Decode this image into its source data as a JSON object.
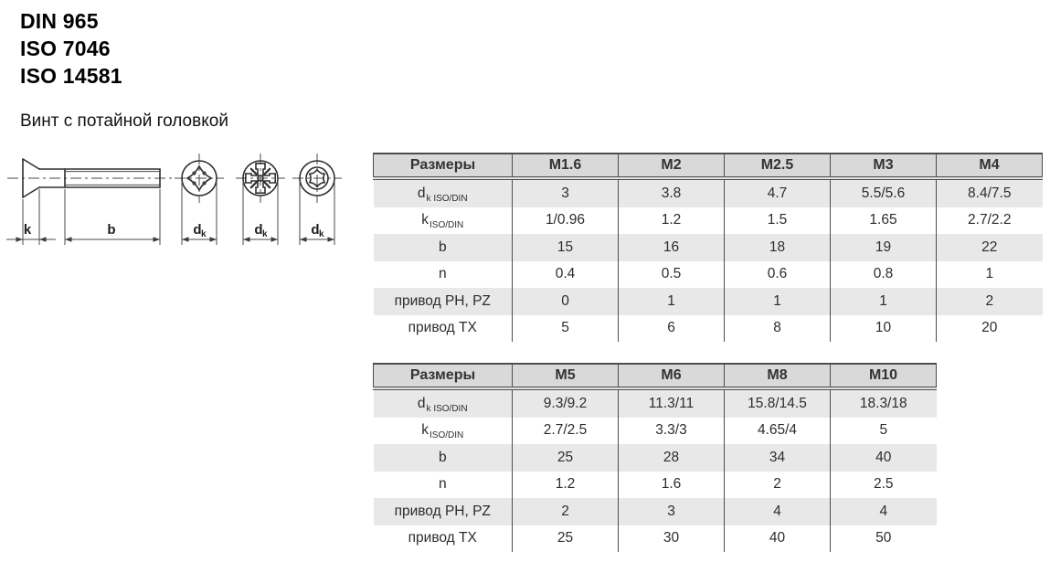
{
  "page": {
    "standards": [
      "DIN 965",
      "ISO 7046",
      "ISO 14581"
    ],
    "subtitle": "Винт с потайной головкой"
  },
  "drawing": {
    "view_names": [
      "screw-side-view",
      "phillips-recess",
      "pozidriv-recess",
      "torx-recess"
    ],
    "labels": {
      "k": "k",
      "b": "b",
      "d_main": "d",
      "d_sub": "k"
    }
  },
  "tables": [
    {
      "header_label": "Размеры",
      "columns": [
        "M1.6",
        "M2",
        "M2.5",
        "M3",
        "M4"
      ],
      "rows": [
        {
          "label_main": "d",
          "label_sub": "k ISO/DIN",
          "values": [
            "3",
            "3.8",
            "4.7",
            "5.5/5.6",
            "8.4/7.5"
          ]
        },
        {
          "label_main": "k",
          "label_sub": "ISO/DIN",
          "values": [
            "1/0.96",
            "1.2",
            "1.5",
            "1.65",
            "2.7/2.2"
          ]
        },
        {
          "label_main": "b",
          "label_sub": "",
          "values": [
            "15",
            "16",
            "18",
            "19",
            "22"
          ]
        },
        {
          "label_main": "n",
          "label_sub": "",
          "values": [
            "0.4",
            "0.5",
            "0.6",
            "0.8",
            "1"
          ]
        },
        {
          "label_main": "привод PH, PZ",
          "label_sub": "",
          "values": [
            "0",
            "1",
            "1",
            "1",
            "2"
          ]
        },
        {
          "label_main": "привод TX",
          "label_sub": "",
          "values": [
            "5",
            "6",
            "8",
            "10",
            "20"
          ]
        }
      ]
    },
    {
      "header_label": "Размеры",
      "columns": [
        "M5",
        "M6",
        "M8",
        "M10"
      ],
      "rows": [
        {
          "label_main": "d",
          "label_sub": "k ISO/DIN",
          "values": [
            "9.3/9.2",
            "11.3/11",
            "15.8/14.5",
            "18.3/18"
          ]
        },
        {
          "label_main": "k",
          "label_sub": "ISO/DIN",
          "values": [
            "2.7/2.5",
            "3.3/3",
            "4.65/4",
            "5"
          ]
        },
        {
          "label_main": "b",
          "label_sub": "",
          "values": [
            "25",
            "28",
            "34",
            "40"
          ]
        },
        {
          "label_main": "n",
          "label_sub": "",
          "values": [
            "1.2",
            "1.6",
            "2",
            "2.5"
          ]
        },
        {
          "label_main": "привод PH, PZ",
          "label_sub": "",
          "values": [
            "2",
            "3",
            "4",
            "4"
          ]
        },
        {
          "label_main": "привод TX",
          "label_sub": "",
          "values": [
            "25",
            "30",
            "40",
            "50"
          ]
        }
      ]
    }
  ],
  "colors": {
    "header_bg": "#d9d9d9",
    "row_alt_bg": "#e8e8e8",
    "border": "#4d4d4d",
    "text": "#2d2d2d",
    "line": "#2e2e2e"
  }
}
